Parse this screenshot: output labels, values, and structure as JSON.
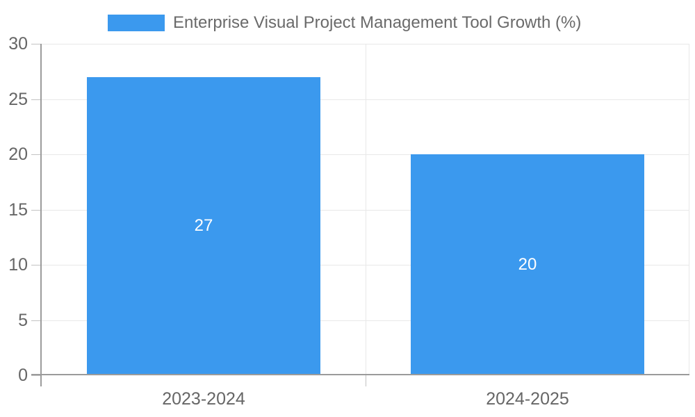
{
  "chart_data": {
    "type": "bar",
    "title": "Enterprise Visual Project Management Tool Growth (%)",
    "categories": [
      "2023-2024",
      "2024-2025"
    ],
    "values": [
      27,
      20
    ],
    "xlabel": "",
    "ylabel": "",
    "ylim": [
      0,
      30
    ],
    "yticks": [
      0,
      5,
      10,
      15,
      20,
      25,
      30
    ],
    "grid": true,
    "legend_position": "top",
    "value_labels": [
      "27",
      "20"
    ],
    "ytick_labels": [
      "0",
      "5",
      "10",
      "15",
      "20",
      "25",
      "30"
    ]
  },
  "colors": {
    "bar": "#3b99ee",
    "axis": "#9b9b9b",
    "grid": "#e8e8e8",
    "tick": "#c2c2c2",
    "tick_label": "#666666",
    "title": "#6a6a6a",
    "value_label": "#ffffff",
    "background": "#ffffff"
  }
}
